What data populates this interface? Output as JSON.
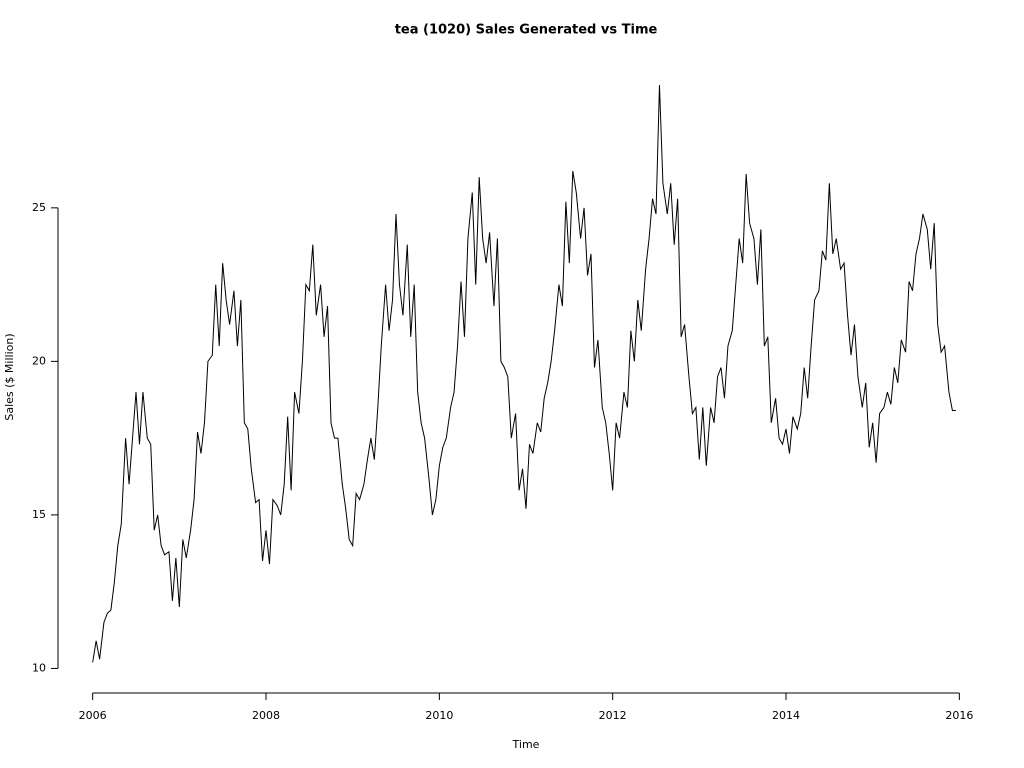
{
  "chart_data": {
    "type": "line",
    "title": "tea (1020) Sales Generated vs Time",
    "x_label": "Time",
    "y_label": "Sales ($ Million)",
    "xlim": [
      2005.6,
      2016.4
    ],
    "ylim": [
      9.2,
      29.75
    ],
    "xticks": [
      2006,
      2008,
      2010,
      2012,
      2014,
      2016
    ],
    "yticks": [
      10,
      15,
      20,
      25
    ],
    "x": [
      2006,
      2006.04,
      2006.08,
      2006.13,
      2006.17,
      2006.21,
      2006.25,
      2006.29,
      2006.33,
      2006.38,
      2006.42,
      2006.46,
      2006.5,
      2006.54,
      2006.58,
      2006.63,
      2006.67,
      2006.71,
      2006.75,
      2006.79,
      2006.83,
      2006.88,
      2006.92,
      2006.96,
      2007,
      2007.04,
      2007.08,
      2007.13,
      2007.17,
      2007.21,
      2007.25,
      2007.29,
      2007.33,
      2007.38,
      2007.42,
      2007.46,
      2007.5,
      2007.54,
      2007.58,
      2007.63,
      2007.67,
      2007.71,
      2007.75,
      2007.79,
      2007.83,
      2007.88,
      2007.92,
      2007.96,
      2008,
      2008.04,
      2008.08,
      2008.13,
      2008.17,
      2008.21,
      2008.25,
      2008.29,
      2008.33,
      2008.38,
      2008.42,
      2008.46,
      2008.5,
      2008.54,
      2008.58,
      2008.63,
      2008.67,
      2008.71,
      2008.75,
      2008.79,
      2008.83,
      2008.88,
      2008.92,
      2008.96,
      2009,
      2009.04,
      2009.08,
      2009.13,
      2009.17,
      2009.21,
      2009.25,
      2009.29,
      2009.33,
      2009.38,
      2009.42,
      2009.46,
      2009.5,
      2009.54,
      2009.58,
      2009.63,
      2009.67,
      2009.71,
      2009.75,
      2009.79,
      2009.83,
      2009.88,
      2009.92,
      2009.96,
      2010,
      2010.04,
      2010.08,
      2010.13,
      2010.17,
      2010.21,
      2010.25,
      2010.29,
      2010.33,
      2010.38,
      2010.42,
      2010.46,
      2010.5,
      2010.54,
      2010.58,
      2010.63,
      2010.67,
      2010.71,
      2010.75,
      2010.79,
      2010.83,
      2010.88,
      2010.92,
      2010.96,
      2011,
      2011.04,
      2011.08,
      2011.13,
      2011.17,
      2011.21,
      2011.25,
      2011.29,
      2011.33,
      2011.38,
      2011.42,
      2011.46,
      2011.5,
      2011.54,
      2011.58,
      2011.63,
      2011.67,
      2011.71,
      2011.75,
      2011.79,
      2011.83,
      2011.88,
      2011.92,
      2011.96,
      2012,
      2012.04,
      2012.08,
      2012.13,
      2012.17,
      2012.21,
      2012.25,
      2012.29,
      2012.33,
      2012.38,
      2012.42,
      2012.46,
      2012.5,
      2012.54,
      2012.58,
      2012.63,
      2012.67,
      2012.71,
      2012.75,
      2012.79,
      2012.83,
      2012.88,
      2012.92,
      2012.96,
      2013,
      2013.04,
      2013.08,
      2013.13,
      2013.17,
      2013.21,
      2013.25,
      2013.29,
      2013.33,
      2013.38,
      2013.42,
      2013.46,
      2013.5,
      2013.54,
      2013.58,
      2013.63,
      2013.67,
      2013.71,
      2013.75,
      2013.79,
      2013.83,
      2013.88,
      2013.92,
      2013.96,
      2014,
      2014.04,
      2014.08,
      2014.13,
      2014.17,
      2014.21,
      2014.25,
      2014.29,
      2014.33,
      2014.38,
      2014.42,
      2014.46,
      2014.5,
      2014.54,
      2014.58,
      2014.63,
      2014.67,
      2014.71,
      2014.75,
      2014.79,
      2014.83,
      2014.88,
      2014.92,
      2014.96,
      2015,
      2015.04,
      2015.08,
      2015.13,
      2015.17,
      2015.21,
      2015.25,
      2015.29,
      2015.33,
      2015.38,
      2015.42,
      2015.46,
      2015.5,
      2015.54,
      2015.58,
      2015.63,
      2015.67,
      2015.71,
      2015.75,
      2015.79,
      2015.83,
      2015.88,
      2015.92,
      2015.96
    ],
    "series": [
      {
        "color": "#000000",
        "values": [
          10.2,
          10.9,
          10.3,
          11.5,
          11.8,
          11.9,
          12.8,
          14.0,
          14.7,
          17.5,
          16.0,
          17.5,
          19.0,
          17.3,
          19.0,
          17.5,
          17.3,
          14.5,
          15.0,
          14.0,
          13.7,
          13.8,
          12.2,
          13.6,
          12.0,
          14.2,
          13.6,
          14.5,
          15.5,
          17.7,
          17.0,
          18.0,
          20.0,
          20.2,
          22.5,
          20.5,
          23.2,
          22.0,
          21.2,
          22.3,
          20.5,
          22.0,
          18.0,
          17.8,
          16.5,
          15.4,
          15.5,
          13.5,
          14.5,
          13.4,
          15.5,
          15.3,
          15.0,
          16.0,
          18.2,
          15.8,
          19.0,
          18.3,
          20.0,
          22.5,
          22.3,
          23.8,
          21.5,
          22.5,
          20.8,
          21.8,
          18.0,
          17.5,
          17.5,
          16.0,
          15.2,
          14.2,
          14.0,
          15.7,
          15.5,
          16.0,
          16.8,
          17.5,
          16.8,
          18.5,
          20.5,
          22.5,
          21.0,
          22.0,
          24.8,
          22.5,
          21.5,
          23.8,
          20.8,
          22.5,
          19.0,
          18.0,
          17.5,
          16.2,
          15.0,
          15.5,
          16.6,
          17.2,
          17.5,
          18.5,
          19.0,
          20.5,
          22.6,
          20.8,
          24.0,
          25.5,
          22.5,
          26.0,
          24.0,
          23.2,
          24.2,
          21.8,
          24.0,
          20.0,
          19.8,
          19.5,
          17.5,
          18.3,
          15.8,
          16.5,
          15.2,
          17.3,
          17.0,
          18.0,
          17.7,
          18.8,
          19.3,
          20.0,
          21.0,
          22.5,
          21.8,
          25.2,
          23.2,
          26.2,
          25.5,
          24.0,
          25.0,
          22.8,
          23.5,
          19.8,
          20.7,
          18.5,
          18.0,
          17.0,
          15.8,
          18.0,
          17.5,
          19.0,
          18.5,
          21.0,
          20.0,
          22.0,
          21.0,
          23.0,
          24.0,
          25.3,
          24.8,
          29.0,
          25.8,
          24.8,
          25.8,
          23.8,
          25.3,
          20.8,
          21.2,
          19.5,
          18.3,
          18.5,
          16.8,
          18.5,
          16.6,
          18.5,
          18.0,
          19.5,
          19.8,
          18.8,
          20.5,
          21.0,
          22.5,
          24.0,
          23.2,
          26.1,
          24.5,
          24.0,
          22.5,
          24.3,
          20.5,
          20.8,
          18.0,
          18.8,
          17.5,
          17.3,
          17.8,
          17.0,
          18.2,
          17.8,
          18.3,
          19.8,
          18.8,
          20.5,
          22.0,
          22.3,
          23.6,
          23.3,
          25.8,
          23.5,
          24.0,
          23.0,
          23.2,
          21.5,
          20.2,
          21.2,
          19.5,
          18.5,
          19.3,
          17.2,
          18.0,
          16.7,
          18.3,
          18.5,
          19.0,
          18.6,
          19.8,
          19.3,
          20.7,
          20.3,
          22.6,
          22.3,
          23.5,
          24.0,
          24.8,
          24.3,
          23.0,
          24.5,
          21.2,
          20.3,
          20.5,
          19.0,
          18.4,
          18.4
        ]
      }
    ]
  }
}
